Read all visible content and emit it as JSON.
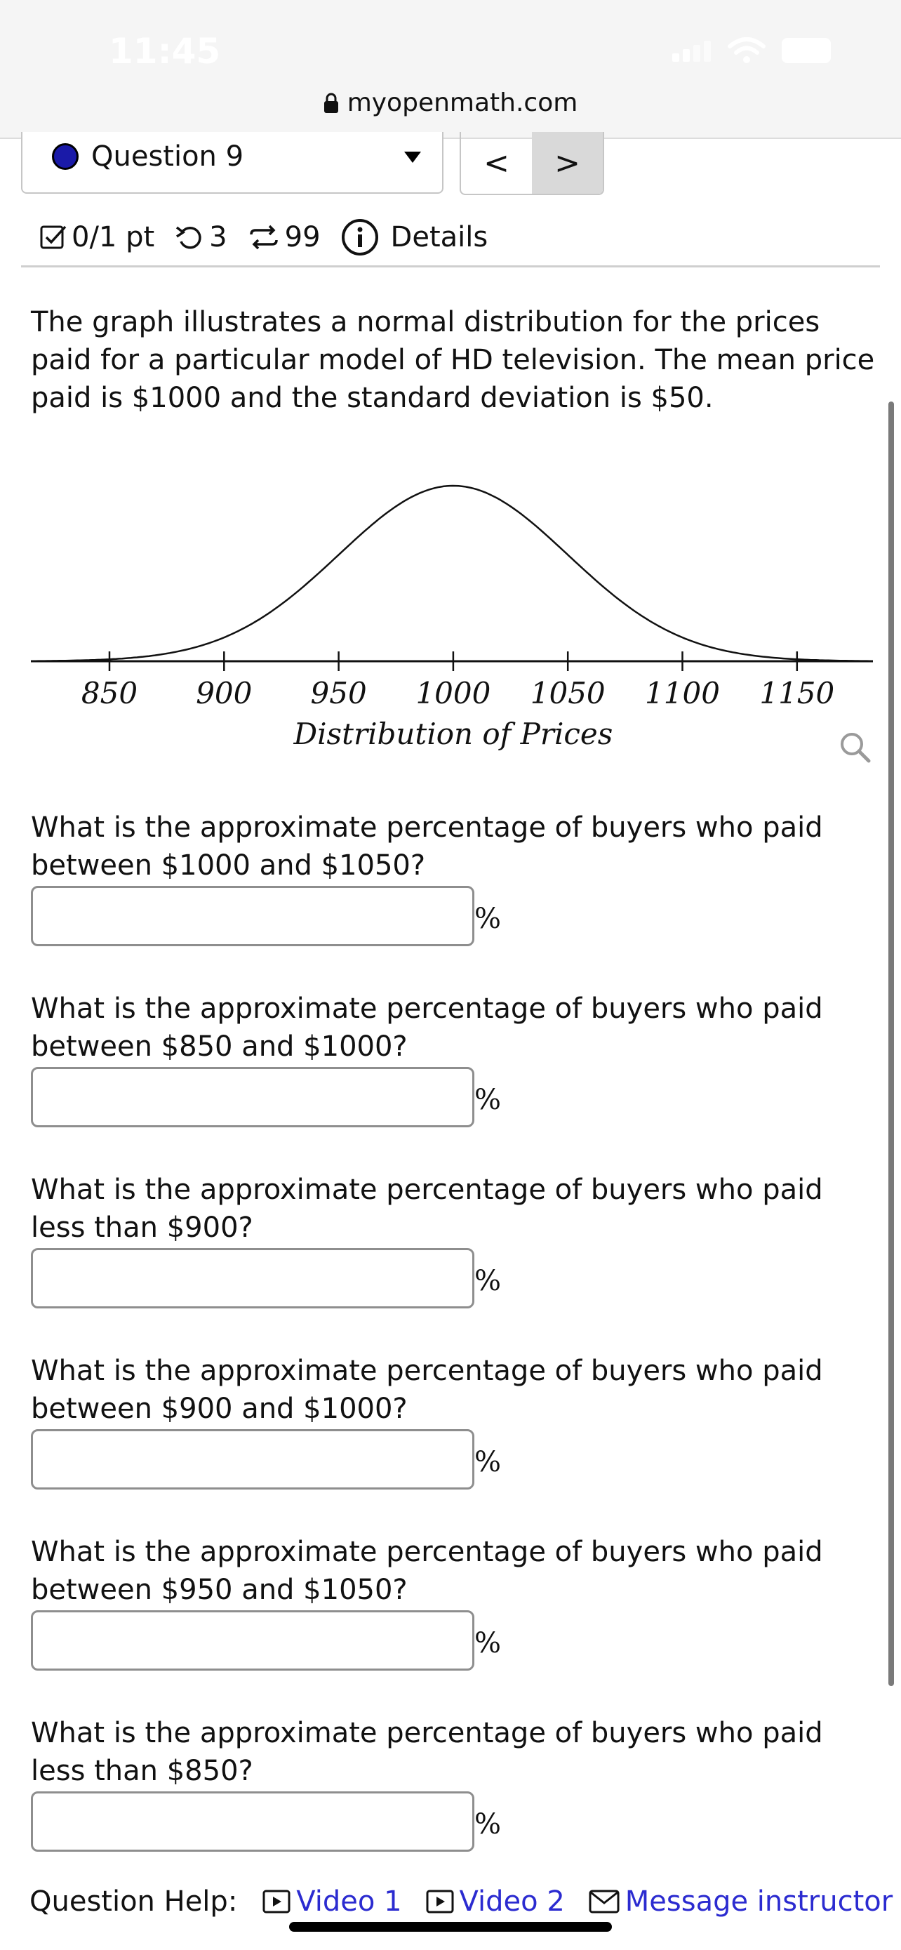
{
  "status": {
    "time": "11:45"
  },
  "browser": {
    "url": "myopenmath.com"
  },
  "question_nav": {
    "label": "Question 9",
    "prev": "<",
    "next": ">"
  },
  "meta": {
    "score": "0/1 pt",
    "retries": "3",
    "attempts": "99",
    "details": "Details"
  },
  "prompt": "The graph illustrates a normal distribution for the prices paid for a particular model of HD television. The mean price paid is $1000 and the standard deviation is $50.",
  "chart_data": {
    "type": "line",
    "mean": 1000,
    "std": 50,
    "x_ticks": [
      850,
      900,
      950,
      1000,
      1050,
      1100,
      1150
    ],
    "xlim": [
      820,
      1185
    ],
    "xlabel": "Distribution of Prices",
    "grid": false
  },
  "questions": [
    {
      "text": "What is the approximate percentage of buyers who paid between $1000 and $1050?",
      "value": "",
      "unit": "%"
    },
    {
      "text": "What is the approximate percentage of buyers who paid between $850 and $1000?",
      "value": "",
      "unit": "%"
    },
    {
      "text": "What is the approximate percentage of buyers who paid less than $900?",
      "value": "",
      "unit": "%"
    },
    {
      "text": "What is the approximate percentage of buyers who paid between $900 and $1000?",
      "value": "",
      "unit": "%"
    },
    {
      "text": "What is the approximate percentage of buyers who paid between $950 and $1050?",
      "value": "",
      "unit": "%"
    },
    {
      "text": "What is the approximate percentage of buyers who paid less than $850?",
      "value": "",
      "unit": "%"
    }
  ],
  "help": {
    "label": "Question Help:",
    "video1": "Video 1",
    "video2": "Video 2",
    "message": "Message instructor"
  },
  "colors": {
    "link": "#2b2bd0",
    "question_dot": "#1a1aa8"
  }
}
